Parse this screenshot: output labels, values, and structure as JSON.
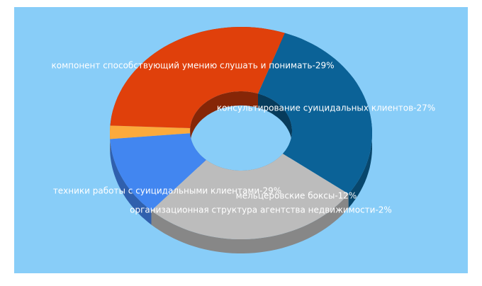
{
  "chart_data": {
    "type": "donut3d",
    "categories": [
      "компонент способствующий умению слушать и понимать-29%",
      "консультирование суицидальных клиентов-27%",
      "мельцеровские боксы-12%",
      "организационная структура агентства недвижимости-2%",
      "техники работы с суицидальными клиентами-29%"
    ],
    "values": [
      29,
      27,
      12,
      2,
      29
    ],
    "colors": [
      "#0b6297",
      "#bcbcbc",
      "#4286f0",
      "#fcaa3c",
      "#e0400b"
    ]
  }
}
